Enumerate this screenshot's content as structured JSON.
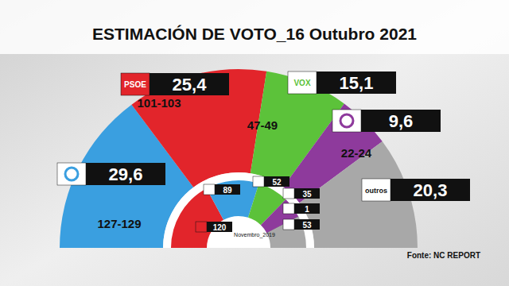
{
  "chart_data": {
    "type": "pie",
    "title": "ESTIMACIÓN DE VOTO_16 Outubro 2021",
    "categories": [
      null,
      "PSOE",
      "VOX",
      null,
      "outros"
    ],
    "values": [
      29.6,
      25.4,
      15.1,
      9.6,
      20.3
    ],
    "value_labels": [
      "29,6",
      "25,4",
      "15,1",
      "9,6",
      "20,3"
    ],
    "seats": [
      "127-129",
      "101-103",
      "47-49",
      "22-24",
      null
    ],
    "colors": [
      "#3a9fe0",
      "#e2252b",
      "#5cc23a",
      "#8e3a9c",
      "#a8a8a8"
    ],
    "data_labels": true,
    "previous": {
      "label": "Novembro_2019",
      "values": [
        120,
        89,
        52,
        35,
        1,
        53
      ],
      "colors": [
        "#e2252b",
        "#3a9fe0",
        "#5cc23a",
        "#8e3a9c",
        "#555555",
        "#a8a8a8"
      ]
    },
    "source": "Fonte: NC REPORT"
  }
}
